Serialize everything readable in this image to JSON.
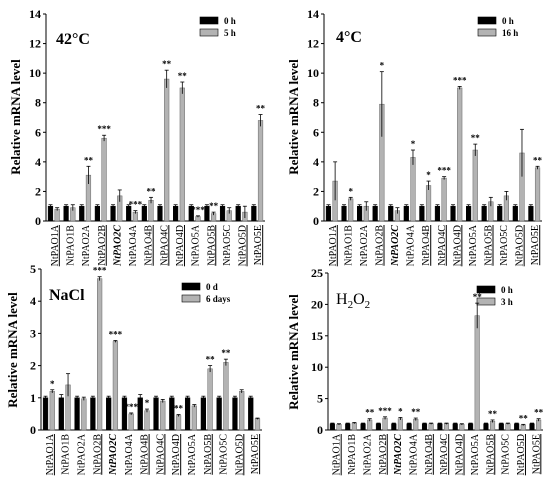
{
  "chart_data": [
    {
      "type": "bar",
      "title": "42°C",
      "ylabel": "Relative mRNA level",
      "ylim": [
        0,
        14
      ],
      "yticks": [
        0,
        2,
        4,
        6,
        8,
        10,
        12,
        14
      ],
      "legend_position": "top-right",
      "categories": [
        "NtPAO1A",
        "NtPAO1B",
        "NtPAO2A",
        "NtPAO2B",
        "NtPAO2C",
        "NtPAO4A",
        "NtPAO4B",
        "NtPAO4C",
        "NtPAO4D",
        "NtPAO5A",
        "NtPAO5B",
        "NtPAO5C",
        "NtPAO5D",
        "NtPAO5E"
      ],
      "underlined": [
        true,
        false,
        false,
        true,
        false,
        false,
        true,
        true,
        true,
        false,
        true,
        false,
        true,
        true
      ],
      "italic_bold": [
        false,
        false,
        false,
        false,
        true,
        false,
        false,
        false,
        false,
        false,
        false,
        false,
        false,
        false
      ],
      "series": [
        {
          "name": "0 h",
          "color": "#000000",
          "values": [
            1,
            1,
            1,
            1,
            1,
            1,
            1,
            1,
            1,
            1,
            1,
            1,
            1,
            1
          ],
          "errors": [
            0.1,
            0.1,
            0.1,
            0.1,
            0.1,
            0.1,
            0.1,
            0.1,
            0.1,
            0.1,
            0.1,
            0.1,
            0.1,
            0.1
          ]
        },
        {
          "name": "5 h",
          "color": "#b3b3b3",
          "values": [
            0.8,
            0.9,
            3.1,
            5.6,
            1.7,
            0.6,
            1.4,
            9.6,
            9.0,
            0.3,
            0.5,
            0.7,
            0.6,
            6.8
          ],
          "errors": [
            0.1,
            0.2,
            0.6,
            0.2,
            0.4,
            0.1,
            0.2,
            0.6,
            0.4,
            0.05,
            0.1,
            0.2,
            0.4,
            0.4
          ]
        }
      ],
      "significance": [
        {
          "index": 2,
          "label": "**"
        },
        {
          "index": 3,
          "label": "***"
        },
        {
          "index": 5,
          "label": "***"
        },
        {
          "index": 6,
          "label": "**"
        },
        {
          "index": 7,
          "label": "**"
        },
        {
          "index": 8,
          "label": "**"
        },
        {
          "index": 9,
          "label": "***"
        },
        {
          "index": 10,
          "label": "**"
        },
        {
          "index": 13,
          "label": "**"
        }
      ]
    },
    {
      "type": "bar",
      "title": "4°C",
      "ylabel": "Relative mRNA level",
      "ylim": [
        0,
        14
      ],
      "yticks": [
        0,
        2,
        4,
        6,
        8,
        10,
        12,
        14
      ],
      "legend_position": "top-right",
      "categories": [
        "NtPAO1A",
        "NtPAO1B",
        "NtPAO2A",
        "NtPAO2B",
        "NtPAO2C",
        "NtPAO4A",
        "NtPAO4B",
        "NtPAO4C",
        "NtPAO4D",
        "NtPAO5A",
        "NtPAO5B",
        "NtPAO5C",
        "NtPAO5D",
        "NtPAO5E"
      ],
      "underlined": [
        true,
        false,
        false,
        true,
        false,
        false,
        true,
        true,
        true,
        false,
        true,
        false,
        true,
        true
      ],
      "italic_bold": [
        false,
        false,
        false,
        false,
        true,
        false,
        false,
        false,
        false,
        false,
        false,
        false,
        false,
        false
      ],
      "series": [
        {
          "name": "0 h",
          "color": "#000000",
          "values": [
            1,
            1,
            1,
            1,
            1,
            1,
            1,
            1,
            1,
            1,
            1,
            1,
            1,
            1
          ],
          "errors": [
            0.1,
            0.1,
            0.1,
            0.1,
            0.1,
            0.1,
            0.1,
            0.1,
            0.1,
            0.1,
            0.1,
            0.1,
            0.1,
            0.1
          ]
        },
        {
          "name": "16 h",
          "color": "#b3b3b3",
          "values": [
            2.7,
            1.5,
            1.0,
            7.9,
            0.7,
            4.3,
            2.4,
            2.9,
            9.0,
            4.8,
            1.3,
            1.7,
            4.6,
            3.6
          ],
          "errors": [
            1.3,
            0.1,
            0.3,
            2.2,
            0.2,
            0.5,
            0.3,
            0.1,
            0.1,
            0.4,
            0.3,
            0.3,
            1.6,
            0.1
          ]
        }
      ],
      "significance": [
        {
          "index": 1,
          "label": "*"
        },
        {
          "index": 3,
          "label": "*"
        },
        {
          "index": 5,
          "label": "*"
        },
        {
          "index": 6,
          "label": "*"
        },
        {
          "index": 7,
          "label": "***"
        },
        {
          "index": 8,
          "label": "***"
        },
        {
          "index": 9,
          "label": "**"
        },
        {
          "index": 13,
          "label": "**"
        }
      ]
    },
    {
      "type": "bar",
      "title": "NaCl",
      "ylabel": "Relative mRNA level",
      "ylim": [
        0,
        5
      ],
      "yticks": [
        0,
        1,
        2,
        3,
        4,
        5
      ],
      "legend_position": "top-right",
      "categories": [
        "NtPAO1A",
        "NtPAO1B",
        "NtPAO2A",
        "NtPAO2B",
        "NtPAO2C",
        "NtPAO4A",
        "NtPAO4B",
        "NtPAO4C",
        "NtPAO4D",
        "NtPAO5A",
        "NtPAO5B",
        "NtPAO5C",
        "NtPAO5D",
        "NtPAO5E"
      ],
      "underlined": [
        true,
        false,
        false,
        true,
        false,
        false,
        true,
        true,
        true,
        false,
        true,
        false,
        true,
        true
      ],
      "italic_bold": [
        false,
        false,
        false,
        false,
        true,
        false,
        false,
        false,
        false,
        false,
        false,
        false,
        false,
        false
      ],
      "series": [
        {
          "name": "0 d",
          "color": "#000000",
          "values": [
            1,
            1,
            1,
            1,
            1,
            1,
            1,
            1,
            1,
            1,
            1,
            1,
            1,
            1
          ],
          "errors": [
            0.05,
            0.1,
            0.05,
            0.05,
            0.05,
            0.05,
            0.1,
            0.05,
            0.05,
            0.05,
            0.05,
            0.05,
            0.05,
            0.05
          ]
        },
        {
          "name": "6 days",
          "color": "#b3b3b3",
          "values": [
            1.2,
            1.4,
            0.97,
            4.7,
            2.75,
            0.5,
            0.6,
            0.9,
            0.45,
            0.75,
            1.9,
            2.1,
            1.2,
            0.35
          ],
          "errors": [
            0.05,
            0.35,
            0.05,
            0.06,
            0.03,
            0.03,
            0.05,
            0.05,
            0.03,
            0.04,
            0.1,
            0.1,
            0.05,
            0.02
          ]
        }
      ],
      "significance": [
        {
          "index": 0,
          "label": "*"
        },
        {
          "index": 3,
          "label": "***"
        },
        {
          "index": 4,
          "label": "***"
        },
        {
          "index": 5,
          "label": "***"
        },
        {
          "index": 6,
          "label": "*"
        },
        {
          "index": 8,
          "label": "**"
        },
        {
          "index": 10,
          "label": "**"
        },
        {
          "index": 11,
          "label": "**"
        }
      ]
    },
    {
      "type": "bar",
      "title": "H2O2",
      "ylabel": "Relative mRNA level",
      "ylim": [
        0,
        25
      ],
      "yticks": [
        0,
        5,
        10,
        15,
        20,
        25
      ],
      "legend_position": "top-right",
      "categories": [
        "NtPAO1A",
        "NtPAO1B",
        "NtPAO2A",
        "NtPAO2B",
        "NtPAO2C",
        "NtPAO4A",
        "NtPAO4B",
        "NtPAO4C",
        "NtPAO4D",
        "NtPAO5A",
        "NtPAO5B",
        "NtPAO5C",
        "NtPAO5D",
        "NtPAO5E"
      ],
      "underlined": [
        true,
        false,
        false,
        true,
        false,
        false,
        true,
        true,
        true,
        false,
        true,
        false,
        true,
        true
      ],
      "italic_bold": [
        false,
        false,
        false,
        false,
        true,
        false,
        false,
        false,
        false,
        false,
        false,
        false,
        false,
        false
      ],
      "series": [
        {
          "name": "0 h",
          "color": "#000000",
          "values": [
            1,
            1,
            1,
            1,
            1,
            1,
            1,
            1,
            1,
            1,
            1,
            1,
            1,
            1
          ],
          "errors": [
            0.1,
            0.1,
            0.1,
            0.1,
            0.1,
            0.1,
            0.1,
            0.1,
            0.1,
            0.1,
            0.1,
            0.1,
            0.1,
            0.1
          ]
        },
        {
          "name": "3 h",
          "color": "#b3b3b3",
          "values": [
            0.9,
            1.1,
            1.6,
            1.9,
            1.8,
            1.7,
            1.0,
            1.0,
            0.9,
            18.2,
            1.4,
            1.0,
            0.8,
            1.6
          ],
          "errors": [
            0.1,
            0.1,
            0.2,
            0.2,
            0.2,
            0.2,
            0.1,
            0.1,
            0.1,
            2.0,
            0.2,
            0.1,
            0.1,
            0.2
          ]
        }
      ],
      "significance": [
        {
          "index": 2,
          "label": "**"
        },
        {
          "index": 3,
          "label": "***"
        },
        {
          "index": 4,
          "label": "*"
        },
        {
          "index": 5,
          "label": "**"
        },
        {
          "index": 9,
          "label": "**"
        },
        {
          "index": 10,
          "label": "**"
        },
        {
          "index": 12,
          "label": "**"
        },
        {
          "index": 13,
          "label": "**"
        }
      ]
    }
  ]
}
